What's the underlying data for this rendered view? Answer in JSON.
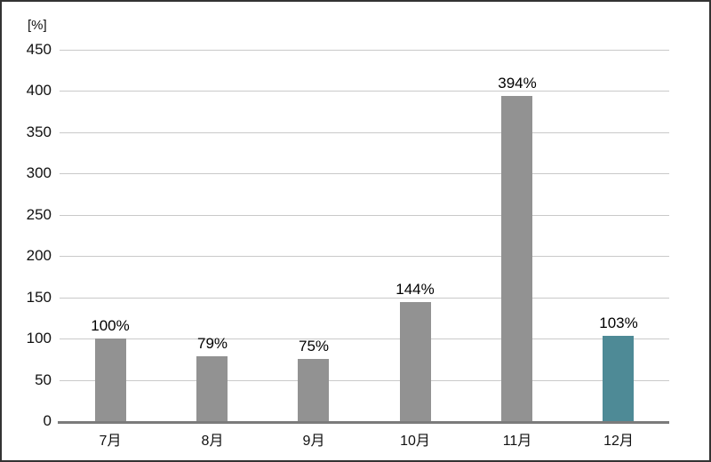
{
  "chart_data": {
    "type": "bar",
    "title": "",
    "unit_label": "[%]",
    "categories": [
      "7月",
      "8月",
      "9月",
      "10月",
      "11月",
      "12月"
    ],
    "values": [
      100,
      79,
      75,
      144,
      394,
      103
    ],
    "bar_labels": [
      "100%",
      "79%",
      "75%",
      "144%",
      "394%",
      "103%"
    ],
    "ylim": [
      0,
      450
    ],
    "yticks": [
      0,
      50,
      100,
      150,
      200,
      250,
      300,
      350,
      400,
      450
    ],
    "grid": true,
    "legend": false,
    "bar_colors": [
      "#929292",
      "#929292",
      "#929292",
      "#929292",
      "#929292",
      "#4e8a96"
    ],
    "colors": {
      "bar_default": "#929292",
      "bar_highlight": "#4e8a96",
      "gridline": "#c9c9c9",
      "axis_line": "#7b7b7b",
      "text": "#111111",
      "frame_border": "#333333",
      "background": "#ffffff"
    }
  }
}
